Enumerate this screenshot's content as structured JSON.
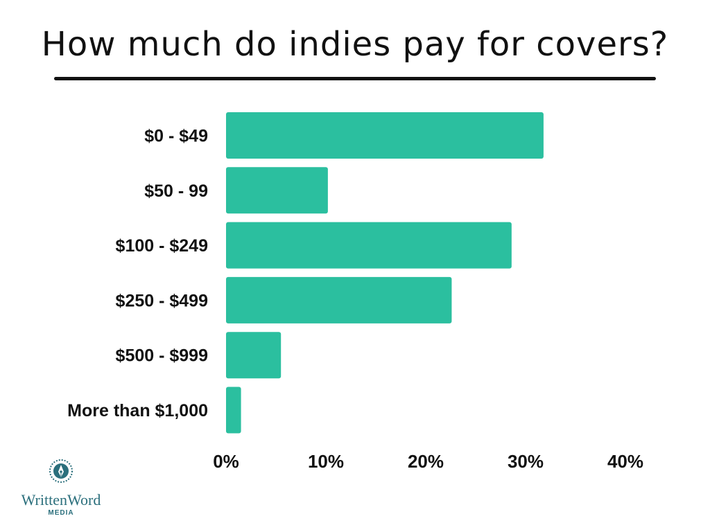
{
  "chart_data": {
    "type": "bar",
    "orientation": "horizontal",
    "title": "How much do indies pay for covers?",
    "categories": [
      "$0 - $49",
      "$50 - 99",
      "$100 - $249",
      "$250 - $499",
      "$500 - $999",
      "More than $1,000"
    ],
    "values": [
      31.8,
      10.2,
      28.6,
      22.6,
      5.5,
      1.5
    ],
    "unit": "%",
    "xlim": [
      0,
      40
    ],
    "xticks": [
      "0%",
      "10%",
      "20%",
      "30%",
      "40%"
    ],
    "grid": false,
    "legend": "none",
    "bar_color": "#2bbf9f"
  },
  "branding": {
    "brand_name": "WrittenWord",
    "brand_sub": "MEDIA",
    "logo_color": "#2b6f7c"
  }
}
